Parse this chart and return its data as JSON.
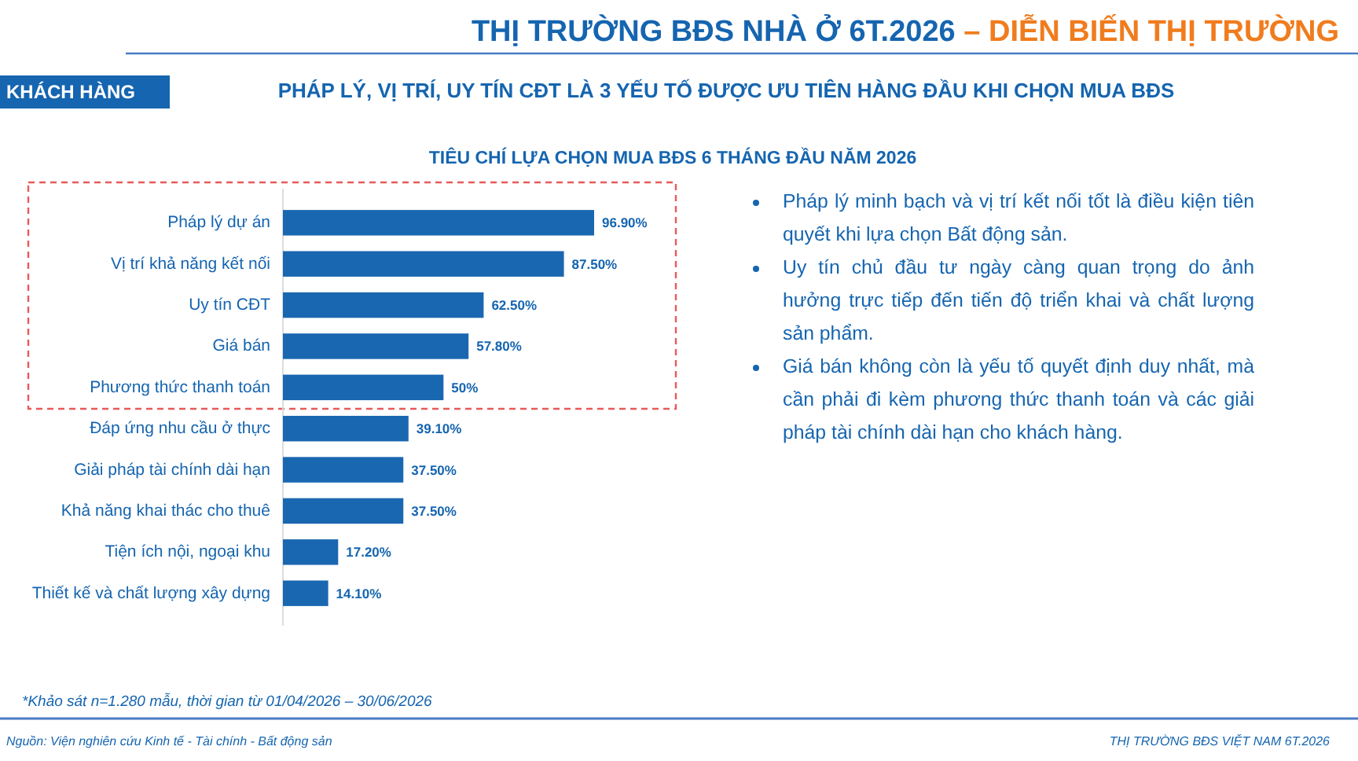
{
  "chart_data": {
    "type": "bar",
    "orientation": "horizontal",
    "title": "TIÊU CHÍ LỰA CHỌN MUA BĐS 6 THÁNG ĐẦU NĂM 2026",
    "subtitle": "PHÁP LÝ, VỊ TRÍ, UY TÍN CĐT LÀ 3 YẾU TỐ ĐƯỢC ƯU TIÊN HÀNG ĐẦU KHI CHỌN MUA BĐS",
    "categories": [
      "Pháp lý dự án",
      "Vị trí khả năng kết nối",
      "Uy tín CĐT",
      "Giá bán",
      "Phương thức thanh toán",
      "Đáp ứng nhu cầu ở thực",
      "Giải pháp tài chính dài hạn",
      "Khả năng khai thác cho thuê",
      "Tiện ích nội, ngoại khu",
      "Thiết kế và chất lượng xây dựng"
    ],
    "values": [
      96.9,
      87.5,
      62.5,
      57.8,
      50,
      39.1,
      37.5,
      37.5,
      17.2,
      14.1
    ],
    "value_labels": [
      "96.90%",
      "87.50%",
      "62.50%",
      "57.80%",
      "50%",
      "39.10%",
      "37.50%",
      "37.50%",
      "17.20%",
      "14.10%"
    ],
    "color": "#1a67b1",
    "annotations": [
      "THỊ TRƯỜNG BĐS NHÀ Ở 6T.2026 – DIỄN BIẾN THỊ TRƯỜNG",
      "KHÁCH HÀNG",
      "Pháp lý minh bạch và vị trí kết nối tốt là điều kiện tiên quyết khi lựa chọn Bất động sản.",
      "Uy tín chủ đầu tư ngày càng quan trọng do ảnh hưởng trực tiếp đến tiến độ triển khai và chất lượng sản phẩm.",
      "Giá bán không còn là yếu tố quyết định duy nhất, mà cần phải đi kèm phương thức thanh toán và các giải pháp tài chính dài hạn cho khách hàng.",
      "*Khảo sát n=1.280 mẫu, thời gian từ 01/04/2026 – 30/06/2026",
      "Nguồn: Viện nghiên cứu Kinh tế - Tài chính - Bất động sản",
      "THỊ TRƯỜNG BĐS VIỆT NAM 6T.2026"
    ]
  }
}
